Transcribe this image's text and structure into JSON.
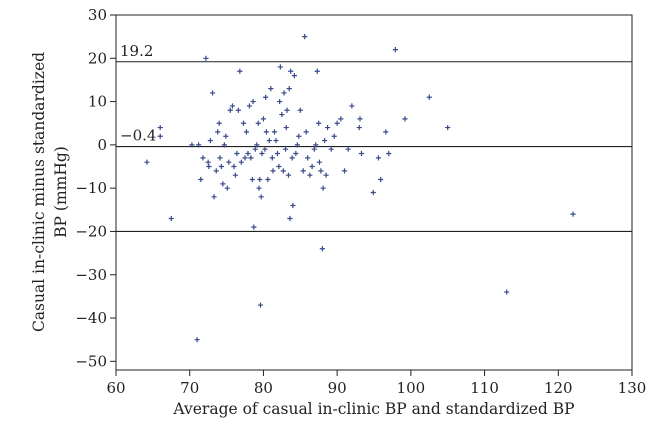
{
  "chart_data": {
    "type": "scatter",
    "xlabel": "Average of casual in-clinic BP and standardized BP",
    "ylabel_lines": [
      "Casual in-clinic minus standardized",
      "BP (mmHg)"
    ],
    "xlim": [
      60,
      130
    ],
    "ylim": [
      -52,
      30
    ],
    "x_ticks": [
      60,
      70,
      80,
      90,
      100,
      110,
      120,
      130
    ],
    "y_ticks": [
      -50,
      -40,
      -30,
      -20,
      -10,
      0,
      10,
      20,
      30
    ],
    "reference_lines": [
      {
        "value": 19.2,
        "label": "19.2"
      },
      {
        "value": -0.4,
        "label": "−0.4"
      },
      {
        "value": -20,
        "label": ""
      }
    ],
    "grid": false,
    "marker": "plus",
    "marker_color": "#3a4a8a",
    "points": [
      [
        64.2,
        -4
      ],
      [
        66,
        4
      ],
      [
        66,
        2
      ],
      [
        67.5,
        -17
      ],
      [
        70.3,
        0
      ],
      [
        71,
        -45
      ],
      [
        71.2,
        0
      ],
      [
        71.5,
        -8
      ],
      [
        71.8,
        -3
      ],
      [
        72.2,
        20
      ],
      [
        72.5,
        -4
      ],
      [
        72.6,
        -5
      ],
      [
        72.8,
        1
      ],
      [
        73.1,
        12
      ],
      [
        73.3,
        -12
      ],
      [
        73.6,
        -6
      ],
      [
        73.8,
        3
      ],
      [
        74,
        5
      ],
      [
        74.1,
        -3
      ],
      [
        74.3,
        -5
      ],
      [
        74.5,
        -9
      ],
      [
        74.7,
        0
      ],
      [
        74.9,
        2
      ],
      [
        75.1,
        -10
      ],
      [
        75.3,
        -4
      ],
      [
        75.5,
        8
      ],
      [
        75.8,
        9
      ],
      [
        76,
        -5
      ],
      [
        76.2,
        -7
      ],
      [
        76.4,
        -2
      ],
      [
        76.6,
        8
      ],
      [
        76.8,
        17
      ],
      [
        77,
        -4
      ],
      [
        77.3,
        5
      ],
      [
        77.5,
        -3
      ],
      [
        77.7,
        3
      ],
      [
        77.9,
        -2
      ],
      [
        78.1,
        9
      ],
      [
        78.3,
        -3
      ],
      [
        78.5,
        -8
      ],
      [
        78.6,
        10
      ],
      [
        78.7,
        -19
      ],
      [
        78.9,
        -1
      ],
      [
        79.1,
        0
      ],
      [
        79.3,
        5
      ],
      [
        79.4,
        -10
      ],
      [
        79.5,
        -8
      ],
      [
        79.6,
        -37
      ],
      [
        79.7,
        -12
      ],
      [
        79.8,
        -2
      ],
      [
        80,
        6
      ],
      [
        80.2,
        -1
      ],
      [
        80.3,
        11
      ],
      [
        80.4,
        3
      ],
      [
        80.6,
        -8
      ],
      [
        80.8,
        1
      ],
      [
        81,
        13
      ],
      [
        81.2,
        -3
      ],
      [
        81.3,
        -6
      ],
      [
        81.5,
        3
      ],
      [
        81.7,
        1
      ],
      [
        81.9,
        -2
      ],
      [
        82.1,
        -5
      ],
      [
        82.2,
        10
      ],
      [
        82.3,
        18
      ],
      [
        82.5,
        7
      ],
      [
        82.7,
        -6
      ],
      [
        82.8,
        12
      ],
      [
        83,
        -1
      ],
      [
        83.1,
        4
      ],
      [
        83.2,
        8
      ],
      [
        83.4,
        -7
      ],
      [
        83.5,
        13
      ],
      [
        83.6,
        -17
      ],
      [
        83.7,
        17
      ],
      [
        83.9,
        -3
      ],
      [
        84,
        -14
      ],
      [
        84.2,
        16
      ],
      [
        84.4,
        -2
      ],
      [
        84.6,
        0
      ],
      [
        84.8,
        2
      ],
      [
        85,
        8
      ],
      [
        85.4,
        -6
      ],
      [
        85.6,
        25
      ],
      [
        85.8,
        3
      ],
      [
        86,
        -3
      ],
      [
        86.3,
        -7
      ],
      [
        86.6,
        -5
      ],
      [
        86.9,
        -1
      ],
      [
        87.1,
        0
      ],
      [
        87.3,
        17
      ],
      [
        87.5,
        5
      ],
      [
        87.6,
        -4
      ],
      [
        87.8,
        -6
      ],
      [
        88,
        -24
      ],
      [
        88.1,
        -10
      ],
      [
        88.3,
        1
      ],
      [
        88.5,
        -7
      ],
      [
        88.7,
        4
      ],
      [
        89.2,
        -1
      ],
      [
        89.6,
        2
      ],
      [
        90,
        5
      ],
      [
        90.5,
        6
      ],
      [
        91,
        -6
      ],
      [
        91.5,
        -1
      ],
      [
        92,
        9
      ],
      [
        93,
        4
      ],
      [
        93.1,
        6
      ],
      [
        93.3,
        -2
      ],
      [
        94.9,
        -11
      ],
      [
        95.6,
        -3
      ],
      [
        95.9,
        -8
      ],
      [
        96.6,
        3
      ],
      [
        97,
        -2
      ],
      [
        97.9,
        22
      ],
      [
        99.2,
        6
      ],
      [
        102.5,
        11
      ],
      [
        105,
        4
      ],
      [
        113,
        -34
      ],
      [
        122,
        -16
      ]
    ]
  }
}
